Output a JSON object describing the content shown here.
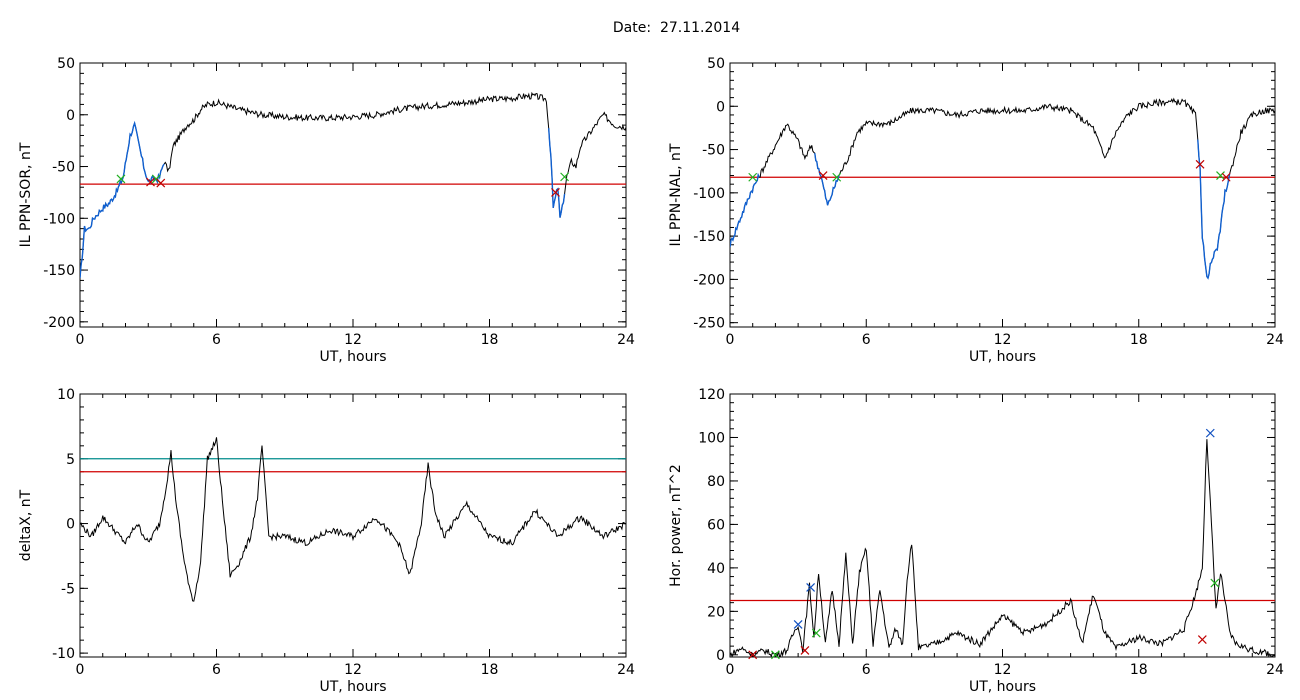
{
  "page": {
    "title": "Date:  27.11.2014"
  },
  "colors": {
    "trace": "#000000",
    "highlight": "#1060d0",
    "threshold_red": "#d00000",
    "threshold_teal": "#008c8c",
    "marker_red": "#c00000",
    "marker_green": "#20b020",
    "marker_blue": "#1050c0"
  },
  "chart_data": [
    {
      "type": "line",
      "xlabel": "UT, hours",
      "ylabel": "IL PPN-SOR, nT",
      "xlim": [
        0,
        24
      ],
      "ylim": [
        -205,
        50
      ],
      "xticks": [
        0,
        6,
        12,
        18,
        24
      ],
      "yticks": [
        50,
        0,
        -50,
        -100,
        -150,
        -200
      ],
      "x": [
        0,
        0.2,
        0.4,
        0.6,
        0.8,
        1.0,
        1.3,
        1.6,
        1.9,
        2.2,
        2.4,
        2.6,
        2.8,
        3.0,
        3.2,
        3.4,
        3.5,
        3.7,
        3.9,
        4.1,
        4.4,
        4.7,
        5.0,
        5.3,
        5.6,
        6,
        7,
        8,
        9,
        10,
        11,
        12,
        13,
        14,
        15,
        16,
        17,
        18,
        19,
        19.5,
        20,
        20.5,
        20.7,
        20.8,
        21.0,
        21.1,
        21.2,
        21.4,
        21.6,
        21.8,
        22.0,
        22.5,
        23,
        23.5,
        24
      ],
      "series": [
        {
          "values": [
            -160,
            -110,
            -110,
            -100,
            -95,
            -90,
            -85,
            -75,
            -60,
            -20,
            -10,
            -30,
            -50,
            -65,
            -62,
            -62,
            -60,
            -45,
            -55,
            -30,
            -20,
            -10,
            -5,
            5,
            10,
            12,
            5,
            0,
            -2,
            -3,
            -3,
            -2,
            0,
            5,
            8,
            10,
            12,
            15,
            16,
            18,
            18,
            15,
            -40,
            -90,
            -70,
            -100,
            -90,
            -60,
            -45,
            -50,
            -30,
            -15,
            0,
            -10,
            -12
          ]
        }
      ],
      "highlight_segments": [
        {
          "x_range": [
            0,
            3.7
          ]
        },
        {
          "x_range": [
            20.6,
            21.3
          ]
        }
      ],
      "thresholds": [
        {
          "y": -67,
          "color": "red"
        }
      ],
      "markers": [
        {
          "x": 1.8,
          "y": -62,
          "color": "green"
        },
        {
          "x": 3.1,
          "y": -65,
          "color": "red"
        },
        {
          "x": 3.35,
          "y": -62,
          "color": "green"
        },
        {
          "x": 3.55,
          "y": -66,
          "color": "red"
        },
        {
          "x": 20.9,
          "y": -75,
          "color": "red"
        },
        {
          "x": 21.3,
          "y": -60,
          "color": "green"
        }
      ]
    },
    {
      "type": "line",
      "xlabel": "UT, hours",
      "ylabel": "IL PPN-NAL, nT",
      "xlim": [
        0,
        24
      ],
      "ylim": [
        -255,
        50
      ],
      "xticks": [
        0,
        6,
        12,
        18,
        24
      ],
      "yticks": [
        50,
        0,
        -50,
        -100,
        -150,
        -200,
        -250
      ],
      "x": [
        0,
        0.3,
        0.6,
        0.9,
        1.2,
        1.5,
        2.0,
        2.5,
        3.0,
        3.3,
        3.6,
        4.0,
        4.3,
        4.5,
        4.8,
        5.2,
        5.6,
        6,
        7,
        8,
        9,
        10,
        11,
        12,
        13,
        14,
        15,
        16,
        16.5,
        17,
        17.5,
        18,
        19,
        20,
        20.5,
        20.7,
        20.8,
        21.0,
        21.2,
        21.5,
        21.8,
        22.0,
        22.2,
        22.5,
        23,
        23.5,
        24
      ],
      "series": [
        {
          "values": [
            -160,
            -140,
            -120,
            -100,
            -85,
            -70,
            -45,
            -20,
            -40,
            -60,
            -45,
            -80,
            -115,
            -100,
            -80,
            -60,
            -30,
            -20,
            -20,
            -5,
            -5,
            -10,
            -5,
            -5,
            -5,
            0,
            -5,
            -25,
            -60,
            -30,
            -10,
            0,
            5,
            5,
            -10,
            -70,
            -150,
            -200,
            -180,
            -160,
            -100,
            -80,
            -60,
            -30,
            -10,
            -5,
            -5
          ]
        }
      ],
      "highlight_segments": [
        {
          "x_range": [
            0,
            1.3
          ]
        },
        {
          "x_range": [
            3.7,
            4.8
          ]
        },
        {
          "x_range": [
            20.6,
            22.0
          ]
        }
      ],
      "thresholds": [
        {
          "y": -82,
          "color": "red"
        }
      ],
      "markers": [
        {
          "x": 1.0,
          "y": -82,
          "color": "green"
        },
        {
          "x": 4.1,
          "y": -80,
          "color": "red"
        },
        {
          "x": 4.7,
          "y": -82,
          "color": "green"
        },
        {
          "x": 20.7,
          "y": -67,
          "color": "red"
        },
        {
          "x": 21.6,
          "y": -80,
          "color": "green"
        },
        {
          "x": 21.85,
          "y": -82,
          "color": "red"
        }
      ]
    },
    {
      "type": "line",
      "xlabel": "UT, hours",
      "ylabel": "deltaX, nT",
      "xlim": [
        0,
        24
      ],
      "ylim": [
        -10.3,
        10
      ],
      "xticks": [
        0,
        6,
        12,
        18,
        24
      ],
      "yticks": [
        10,
        5,
        0,
        -5,
        -10
      ],
      "x": [
        0,
        0.5,
        1.0,
        1.5,
        2.0,
        2.5,
        3.0,
        3.5,
        3.8,
        4.0,
        4.2,
        4.5,
        4.8,
        5.0,
        5.3,
        5.6,
        6.0,
        6.3,
        6.6,
        7.0,
        7.5,
        7.8,
        8.0,
        8.3,
        9,
        10,
        11,
        12,
        13,
        14,
        14.5,
        15.0,
        15.3,
        15.6,
        16,
        17,
        18,
        19,
        20,
        21,
        22,
        23,
        24
      ],
      "series": [
        {
          "values": [
            0,
            -1,
            0.5,
            -0.5,
            -1.5,
            0,
            -1.5,
            0,
            3,
            5.5,
            2,
            -2,
            -5,
            -6,
            -3,
            5,
            6.5,
            1,
            -4,
            -3,
            -1,
            2,
            6,
            -1,
            -1,
            -1.5,
            -0.5,
            -1,
            0.5,
            -1.5,
            -4,
            0,
            4.5,
            1,
            -1,
            1.5,
            -1,
            -1.5,
            1,
            -1,
            0.5,
            -1,
            0
          ]
        }
      ],
      "thresholds": [
        {
          "y": 5,
          "color": "teal"
        },
        {
          "y": 4,
          "color": "red"
        }
      ],
      "markers": []
    },
    {
      "type": "line",
      "xlabel": "UT, hours",
      "ylabel": "Hor. power, nT^2",
      "xlim": [
        0,
        24
      ],
      "ylim": [
        -1,
        120
      ],
      "xticks": [
        0,
        6,
        12,
        18,
        24
      ],
      "yticks": [
        120,
        100,
        80,
        60,
        40,
        20,
        0
      ],
      "x": [
        0,
        0.5,
        1.0,
        1.5,
        2.0,
        2.5,
        2.8,
        3.0,
        3.2,
        3.5,
        3.7,
        3.9,
        4.2,
        4.5,
        4.8,
        5.1,
        5.4,
        5.7,
        6.0,
        6.3,
        6.6,
        7.0,
        7.3,
        7.6,
        7.8,
        8.0,
        8.3,
        9,
        10,
        11,
        12,
        13,
        14,
        15,
        15.5,
        16,
        16.5,
        17,
        18,
        19,
        20,
        20.5,
        20.8,
        21.0,
        21.2,
        21.4,
        21.6,
        21.8,
        22.0,
        22.3,
        23,
        24
      ],
      "series": [
        {
          "values": [
            0,
            3,
            0,
            2,
            0,
            2,
            10,
            14,
            2,
            32,
            8,
            38,
            5,
            30,
            5,
            46,
            5,
            38,
            49,
            5,
            30,
            3,
            12,
            5,
            35,
            52,
            3,
            5,
            10,
            5,
            18,
            10,
            15,
            25,
            5,
            28,
            10,
            3,
            8,
            5,
            12,
            28,
            40,
            100,
            60,
            20,
            38,
            25,
            10,
            5,
            2,
            0
          ]
        }
      ],
      "thresholds": [
        {
          "y": 25,
          "color": "red"
        }
      ],
      "markers": [
        {
          "x": 1.0,
          "y": 0,
          "color": "red"
        },
        {
          "x": 2.0,
          "y": 0,
          "color": "green"
        },
        {
          "x": 3.0,
          "y": 14,
          "color": "blue"
        },
        {
          "x": 3.3,
          "y": 2,
          "color": "red"
        },
        {
          "x": 3.55,
          "y": 31,
          "color": "blue"
        },
        {
          "x": 3.8,
          "y": 10,
          "color": "green"
        },
        {
          "x": 20.8,
          "y": 7,
          "color": "red"
        },
        {
          "x": 21.15,
          "y": 102,
          "color": "blue"
        },
        {
          "x": 21.35,
          "y": 33,
          "color": "green"
        }
      ]
    }
  ]
}
